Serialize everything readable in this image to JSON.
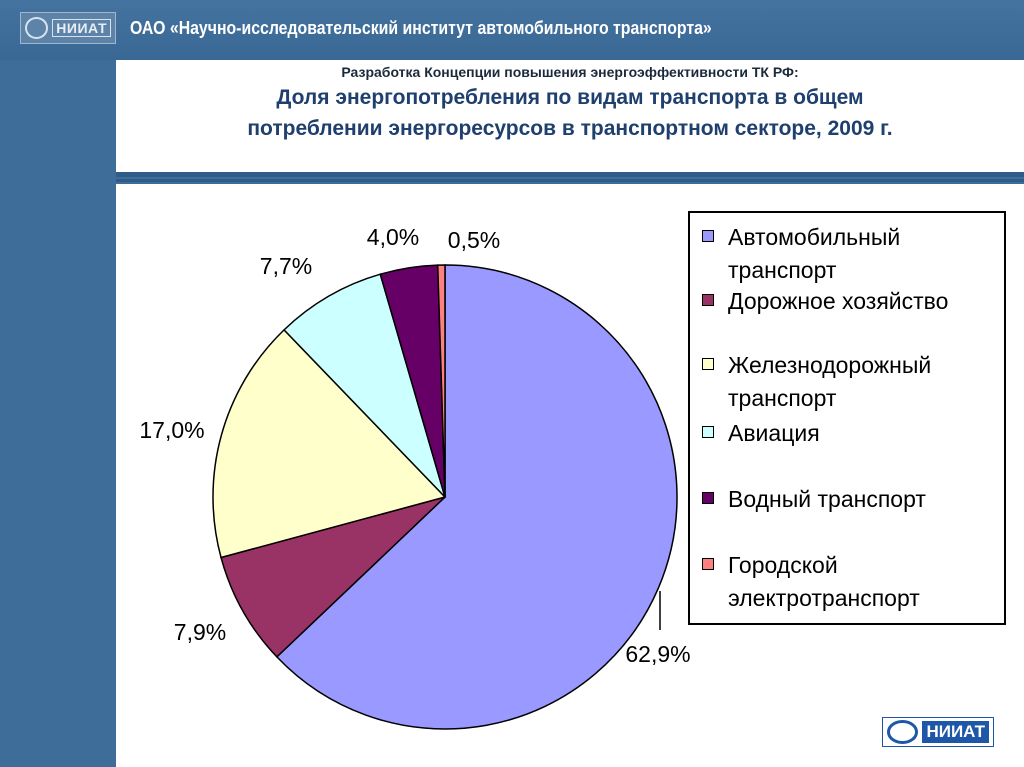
{
  "header": {
    "org_title": "ОАО «Научно-исследовательский институт автомобильного транспорта»",
    "logo_text": "НИИАТ"
  },
  "slide": {
    "subtitle": "Разработка Концепции повышения энергоэффективности ТК РФ:",
    "title_line1": "Доля энергопотребления по видам транспорта в общем",
    "title_line2": "потреблении энергоресурсов в транспортном секторе, 2009 г."
  },
  "chart_data": {
    "type": "pie",
    "title": "Доля энергопотребления по видам транспорта в общем потреблении энергоресурсов в транспортном секторе, 2009 г.",
    "categories": [
      "Автомобильный транспорт",
      "Дорожное хозяйство",
      "Железнодорожный транспорт",
      "Авиация",
      "Водный транспорт",
      "Городской электротранспорт"
    ],
    "values": [
      62.9,
      7.9,
      17.0,
      7.7,
      4.0,
      0.5
    ],
    "data_labels": [
      "62,9%",
      "7,9%",
      "17,0%",
      "7,7%",
      "4,0%",
      "0,5%"
    ],
    "colors": [
      "#9999ff",
      "#993366",
      "#ffffcc",
      "#ccffff",
      "#660066",
      "#ff8080"
    ],
    "start_angle_deg": 0,
    "direction": "clockwise",
    "legend_position": "right"
  },
  "legend": {
    "items": [
      {
        "label_line1": "Автомобильный",
        "label_line2": "транспорт",
        "color": "#9999ff"
      },
      {
        "label_line1": "Дорожное хозяйство",
        "label_line2": "",
        "color": "#993366"
      },
      {
        "label_line1": "Железнодорожный",
        "label_line2": "транспорт",
        "color": "#ffffcc"
      },
      {
        "label_line1": "Авиация",
        "label_line2": "",
        "color": "#ccffff"
      },
      {
        "label_line1": "Водный транспорт",
        "label_line2": "",
        "color": "#660066"
      },
      {
        "label_line1": "Городской",
        "label_line2": "электротранспорт",
        "color": "#ff8080"
      }
    ]
  },
  "footer": {
    "logo_text": "НИИАТ"
  }
}
